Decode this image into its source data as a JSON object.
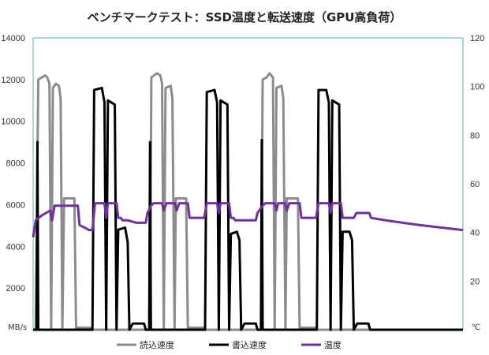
{
  "chart_data": {
    "type": "line",
    "title": "ベンチマークテスト：SSD温度と転送速度（GPU高負荷）",
    "y_left": {
      "unit_label": "MB/s",
      "range": [
        0,
        14000
      ],
      "ticks": [
        0,
        2000,
        4000,
        6000,
        8000,
        10000,
        12000,
        14000
      ]
    },
    "y_right": {
      "unit_label": "℃",
      "range": [
        0,
        120
      ],
      "ticks": [
        0,
        20,
        40,
        60,
        80,
        100,
        120
      ]
    },
    "x_range": [
      0,
      100
    ],
    "grid": false,
    "legend_position": "bottom",
    "series": [
      {
        "name": "読込速度",
        "axis": "left",
        "color": "#8c8c8c",
        "points": [
          [
            0,
            0
          ],
          [
            0.6,
            0
          ],
          [
            1.2,
            12000
          ],
          [
            2.0,
            12100
          ],
          [
            2.8,
            12200
          ],
          [
            3.3,
            12100
          ],
          [
            3.8,
            11800
          ],
          [
            4.2,
            0
          ],
          [
            4.6,
            11600
          ],
          [
            5.3,
            11800
          ],
          [
            6.0,
            11700
          ],
          [
            6.4,
            11100
          ],
          [
            6.8,
            0
          ],
          [
            7.2,
            6300
          ],
          [
            9.6,
            6300
          ],
          [
            10.0,
            0
          ],
          [
            10.2,
            100
          ],
          [
            13.6,
            100
          ],
          [
            13.8,
            0
          ],
          [
            27.2,
            0
          ],
          [
            27.5,
            12100
          ],
          [
            28.8,
            12300
          ],
          [
            29.6,
            12200
          ],
          [
            30.0,
            11800
          ],
          [
            30.4,
            0
          ],
          [
            30.8,
            11600
          ],
          [
            32.0,
            11700
          ],
          [
            32.4,
            11100
          ],
          [
            32.9,
            0
          ],
          [
            33.2,
            6300
          ],
          [
            35.6,
            6300
          ],
          [
            36.0,
            0
          ],
          [
            36.2,
            100
          ],
          [
            39.6,
            100
          ],
          [
            39.8,
            0
          ],
          [
            53.0,
            0
          ],
          [
            53.4,
            12000
          ],
          [
            54.3,
            12100
          ],
          [
            55.0,
            12300
          ],
          [
            55.8,
            12100
          ],
          [
            56.2,
            0
          ],
          [
            56.6,
            11600
          ],
          [
            57.8,
            11700
          ],
          [
            58.2,
            11100
          ],
          [
            58.7,
            0
          ],
          [
            59.0,
            6300
          ],
          [
            61.6,
            6300
          ],
          [
            62.0,
            0
          ],
          [
            62.2,
            100
          ],
          [
            65.6,
            100
          ],
          [
            65.8,
            0
          ],
          [
            100,
            0
          ]
        ]
      },
      {
        "name": "書込速度",
        "axis": "left",
        "color": "#000000",
        "points": [
          [
            0,
            0
          ],
          [
            0.8,
            0
          ],
          [
            1.0,
            9000
          ],
          [
            1.2,
            0
          ],
          [
            13.8,
            0
          ],
          [
            14.2,
            11500
          ],
          [
            16.0,
            11600
          ],
          [
            16.6,
            10900
          ],
          [
            17.0,
            0
          ],
          [
            17.4,
            11000
          ],
          [
            19.0,
            10800
          ],
          [
            19.4,
            0
          ],
          [
            19.8,
            4800
          ],
          [
            21.4,
            4900
          ],
          [
            22.0,
            4200
          ],
          [
            22.4,
            0
          ],
          [
            23.2,
            300
          ],
          [
            25.8,
            300
          ],
          [
            26.2,
            0
          ],
          [
            27.0,
            0
          ],
          [
            27.2,
            9000
          ],
          [
            27.4,
            0
          ],
          [
            40.0,
            0
          ],
          [
            40.4,
            11400
          ],
          [
            42.2,
            11500
          ],
          [
            42.8,
            10900
          ],
          [
            43.2,
            0
          ],
          [
            43.6,
            11000
          ],
          [
            45.2,
            10800
          ],
          [
            45.6,
            0
          ],
          [
            46.0,
            4600
          ],
          [
            47.4,
            4700
          ],
          [
            48.0,
            4300
          ],
          [
            48.4,
            0
          ],
          [
            49.2,
            300
          ],
          [
            51.8,
            300
          ],
          [
            52.2,
            0
          ],
          [
            53.0,
            0
          ],
          [
            53.2,
            9100
          ],
          [
            53.4,
            0
          ],
          [
            66.0,
            0
          ],
          [
            66.4,
            11500
          ],
          [
            68.2,
            11500
          ],
          [
            68.8,
            10900
          ],
          [
            69.2,
            0
          ],
          [
            69.6,
            11000
          ],
          [
            71.2,
            10800
          ],
          [
            71.6,
            0
          ],
          [
            72.0,
            4700
          ],
          [
            73.6,
            4700
          ],
          [
            74.2,
            4300
          ],
          [
            74.6,
            0
          ],
          [
            75.4,
            300
          ],
          [
            78.0,
            300
          ],
          [
            78.4,
            0
          ],
          [
            100,
            0
          ]
        ]
      },
      {
        "name": "温度",
        "axis": "right",
        "color": "#7030a0",
        "points": [
          [
            0,
            38
          ],
          [
            0.6,
            45
          ],
          [
            2.0,
            47
          ],
          [
            3.0,
            48
          ],
          [
            4.0,
            49
          ],
          [
            4.4,
            45
          ],
          [
            5.0,
            51
          ],
          [
            7.0,
            51
          ],
          [
            9.0,
            51
          ],
          [
            10.4,
            51
          ],
          [
            10.8,
            43
          ],
          [
            12.0,
            42
          ],
          [
            13.0,
            41
          ],
          [
            13.8,
            41
          ],
          [
            14.4,
            52
          ],
          [
            16.6,
            52
          ],
          [
            17.0,
            46
          ],
          [
            17.4,
            52
          ],
          [
            19.4,
            52
          ],
          [
            19.8,
            46
          ],
          [
            20.4,
            46
          ],
          [
            20.8,
            45
          ],
          [
            22.0,
            45
          ],
          [
            24.0,
            44
          ],
          [
            26.2,
            44
          ],
          [
            26.6,
            48
          ],
          [
            27.4,
            51
          ],
          [
            28.0,
            52
          ],
          [
            30.0,
            52
          ],
          [
            30.4,
            49
          ],
          [
            31.0,
            52
          ],
          [
            33.0,
            52
          ],
          [
            33.4,
            49
          ],
          [
            34.0,
            52
          ],
          [
            36.0,
            52
          ],
          [
            36.4,
            46
          ],
          [
            38.0,
            46
          ],
          [
            39.8,
            46
          ],
          [
            40.4,
            52
          ],
          [
            42.8,
            52
          ],
          [
            43.2,
            48
          ],
          [
            43.6,
            52
          ],
          [
            45.6,
            52
          ],
          [
            46.0,
            46
          ],
          [
            46.6,
            46
          ],
          [
            47.0,
            45
          ],
          [
            49.0,
            45
          ],
          [
            51.8,
            45
          ],
          [
            52.2,
            48
          ],
          [
            53.4,
            51
          ],
          [
            54.0,
            52
          ],
          [
            56.2,
            52
          ],
          [
            56.6,
            49
          ],
          [
            57.0,
            52
          ],
          [
            58.6,
            52
          ],
          [
            59.0,
            49
          ],
          [
            59.6,
            52
          ],
          [
            62.0,
            52
          ],
          [
            62.4,
            46
          ],
          [
            65.8,
            46
          ],
          [
            66.4,
            52
          ],
          [
            68.8,
            52
          ],
          [
            69.2,
            48
          ],
          [
            69.6,
            52
          ],
          [
            71.6,
            52
          ],
          [
            72.0,
            46
          ],
          [
            74.6,
            46
          ],
          [
            75.2,
            48
          ],
          [
            78.2,
            48
          ],
          [
            78.6,
            46
          ],
          [
            82.0,
            45
          ],
          [
            86.0,
            44
          ],
          [
            90.0,
            43
          ],
          [
            95.0,
            42
          ],
          [
            100,
            41
          ]
        ]
      }
    ]
  }
}
